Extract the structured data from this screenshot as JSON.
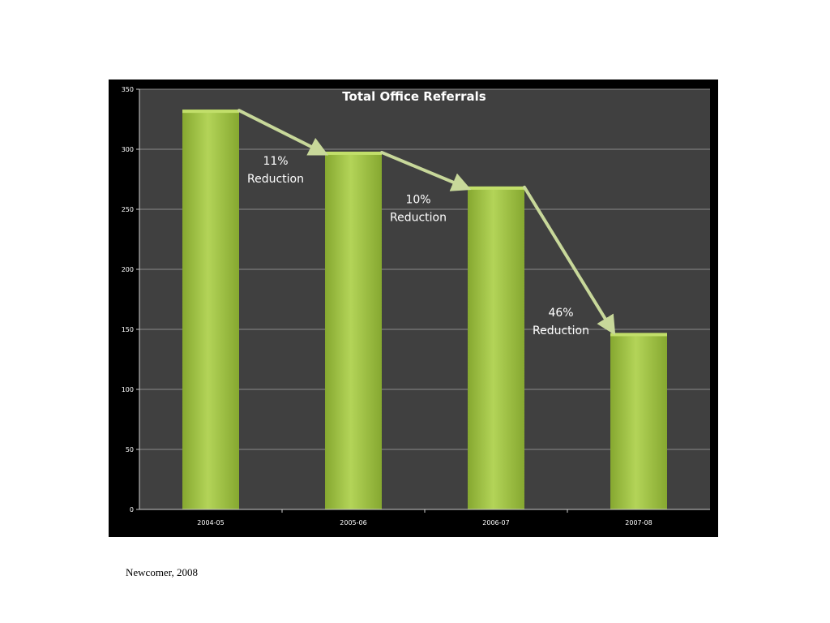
{
  "chart_data": {
    "type": "bar",
    "title": "Total Office Referrals",
    "categories": [
      "2004-05",
      "2005-06",
      "2006-07",
      "2007-08"
    ],
    "values": [
      333,
      298,
      269,
      147
    ],
    "ylim": [
      0,
      350
    ],
    "yticks": [
      0,
      50,
      100,
      150,
      200,
      250,
      300,
      350
    ],
    "xlabel": "",
    "ylabel": "",
    "grid": true,
    "legend": "none",
    "colors": {
      "bar": "#9ec240",
      "bar_light": "#c2df6a",
      "bar_dark": "#7fa12a",
      "plot_bg": "#404040",
      "frame_bg": "#000000",
      "arrow": "#c8d89a",
      "gridline": "#8a8a8a"
    },
    "annotations": [
      {
        "from": 0,
        "to": 1,
        "lines": [
          "11%",
          "Reduction"
        ]
      },
      {
        "from": 1,
        "to": 2,
        "lines": [
          "10%",
          "Reduction"
        ]
      },
      {
        "from": 2,
        "to": 3,
        "lines": [
          "46%",
          "Reduction"
        ]
      }
    ]
  },
  "source": "Newcomer, 2008"
}
